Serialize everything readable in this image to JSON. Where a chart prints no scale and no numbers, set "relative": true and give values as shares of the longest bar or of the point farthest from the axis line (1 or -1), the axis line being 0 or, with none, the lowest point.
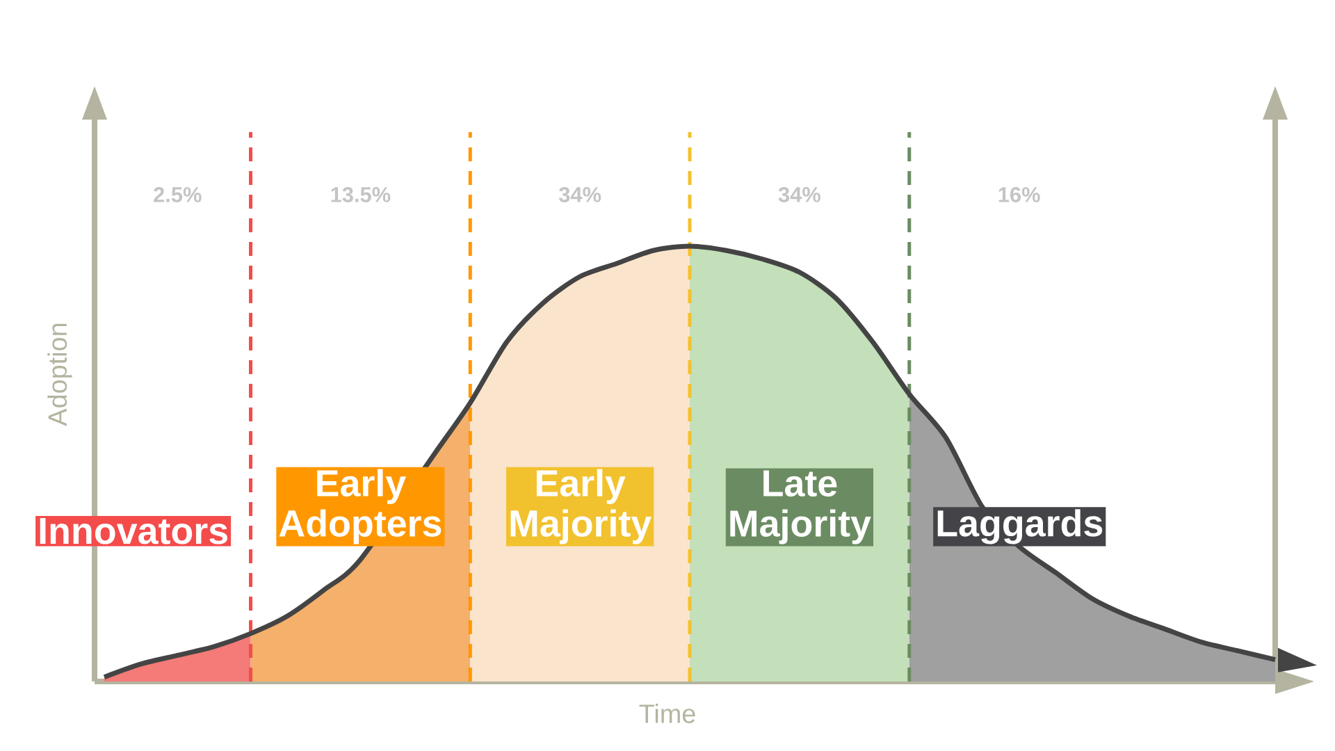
{
  "chart_data": {
    "type": "area",
    "relative": true,
    "xlabel": "Time",
    "ylabel": "Adoption",
    "categories": [
      null,
      null,
      null,
      null,
      null,
      null,
      null,
      null,
      null,
      null,
      null,
      null,
      null,
      null,
      null,
      null,
      null,
      null,
      null,
      null,
      null,
      null,
      null,
      null,
      null,
      null,
      null,
      null,
      null,
      null,
      null,
      null,
      null
    ],
    "series": [
      {
        "name": "Innovators",
        "color": "#f47b78",
        "values": [
          0.01,
          0.04,
          0.06,
          0.08,
          0.11,
          null,
          null,
          null,
          null,
          null,
          null,
          null,
          null,
          null,
          null,
          null,
          null,
          null,
          null,
          null,
          null,
          null,
          null,
          null,
          null,
          null,
          null,
          null,
          null,
          null,
          null,
          null,
          null
        ]
      },
      {
        "name": "Early Adopters",
        "color": "#f5b06b",
        "values": [
          null,
          null,
          null,
          null,
          0.11,
          0.15,
          0.21,
          0.28,
          null,
          0.52,
          0.64,
          null,
          null,
          null,
          null,
          null,
          null,
          null,
          null,
          null,
          null,
          null,
          null,
          null,
          null,
          null,
          null,
          null,
          null,
          null,
          null,
          null,
          null
        ]
      },
      {
        "name": "Early Majority",
        "color": "#fbe4cc",
        "values": [
          null,
          null,
          null,
          null,
          null,
          null,
          null,
          null,
          null,
          null,
          0.64,
          0.78,
          0.87,
          0.93,
          0.96,
          0.99,
          1,
          null,
          null,
          null,
          null,
          null,
          null,
          null,
          null,
          null,
          null,
          null,
          null,
          null,
          null,
          null,
          null
        ]
      },
      {
        "name": "Late Majority",
        "color": "#c3e0bb",
        "values": [
          null,
          null,
          null,
          null,
          null,
          null,
          null,
          null,
          null,
          null,
          null,
          null,
          null,
          null,
          null,
          null,
          1,
          0.99,
          0.97,
          0.94,
          0.88,
          0.78,
          0.66,
          null,
          null,
          null,
          null,
          null,
          null,
          null,
          null,
          null,
          null
        ]
      },
      {
        "name": "Laggards",
        "color": "#a0a0a0",
        "values": [
          null,
          null,
          null,
          null,
          null,
          null,
          null,
          null,
          null,
          null,
          null,
          null,
          null,
          null,
          null,
          null,
          null,
          null,
          null,
          null,
          null,
          null,
          0.66,
          0.56,
          0.4,
          0.31,
          0.25,
          0.19,
          0.15,
          0.12,
          0.09,
          0.07,
          0.05
        ]
      },
      {
        "type": "line",
        "color": "#444444",
        "values": [
          0.01,
          0.04,
          0.06,
          0.08,
          0.11,
          0.15,
          0.21,
          0.28,
          null,
          0.52,
          0.64,
          0.78,
          0.87,
          0.93,
          0.96,
          0.99,
          1,
          0.99,
          0.97,
          0.94,
          0.88,
          0.78,
          0.66,
          0.56,
          0.4,
          0.31,
          0.25,
          0.19,
          0.15,
          0.12,
          0.09,
          0.07,
          0.05
        ]
      }
    ],
    "annotations": [
      "2.5%",
      "13.5%",
      "34%",
      "34%",
      "16%"
    ]
  }
}
